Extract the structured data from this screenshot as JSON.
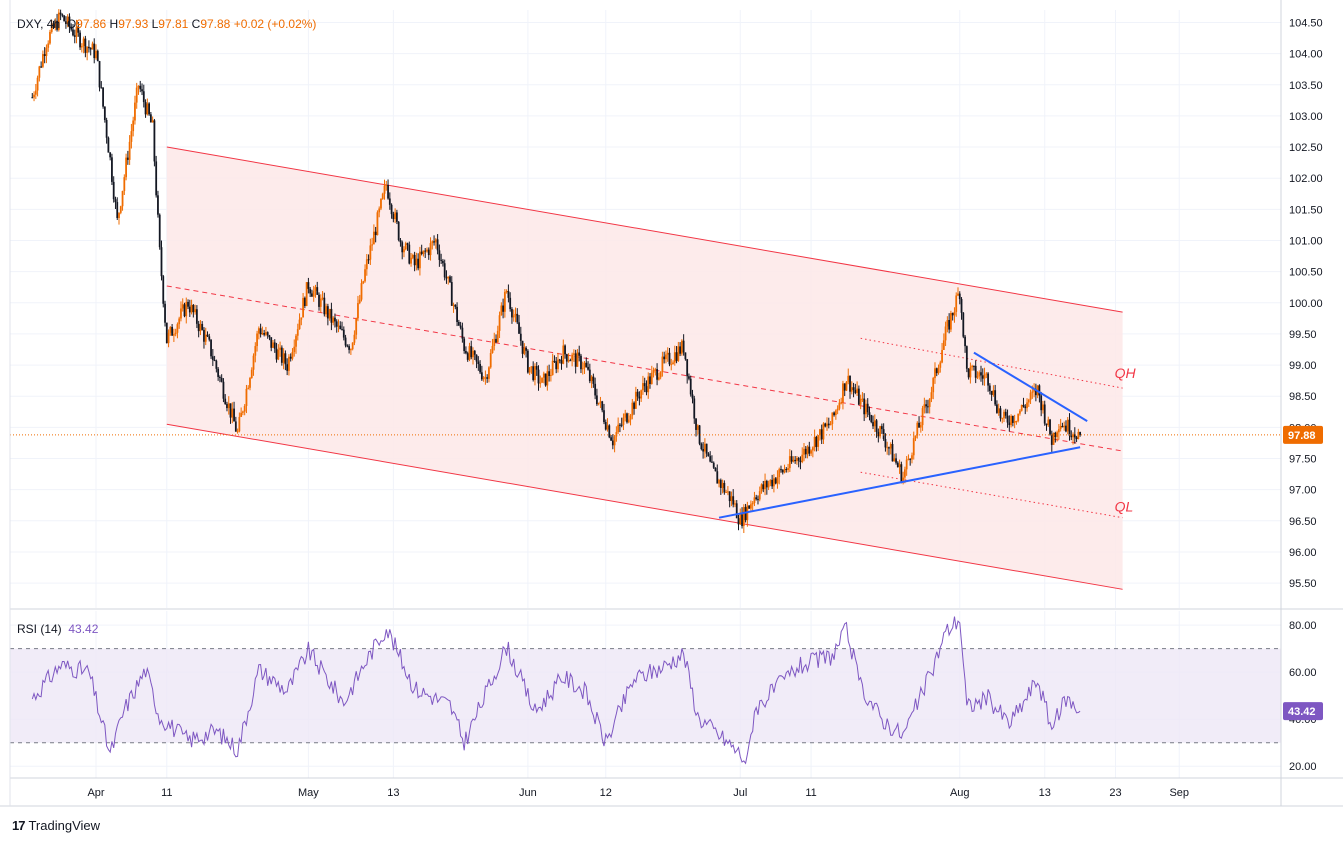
{
  "header": {
    "symbol": "DXY, 4h",
    "open_label": "O",
    "open": "97.86",
    "high_label": "H",
    "high": "97.93",
    "low_label": "L",
    "low": "97.81",
    "close_label": "C",
    "close": "97.88",
    "change": "+0.02 (+0.02%)"
  },
  "rsi_legend": {
    "label": "RSI (14)",
    "value": "43.42"
  },
  "brand": {
    "mark": "17",
    "name": "TradingView"
  },
  "colors": {
    "up": "#ef6c00",
    "down": "#131722",
    "channel_line": "#f23645",
    "channel_fill": "#fde7e7",
    "trendline": "#2962ff",
    "rsi": "#7e57c2",
    "rsi_band": "#ede7f6",
    "price_tag": "#ef6c00",
    "rsi_tag": "#7e57c2"
  },
  "chart_data": [
    {
      "type": "candlestick",
      "symbol": "DXY",
      "timeframe": "4h",
      "ylim": [
        95.1,
        104.7
      ],
      "y_ticks": [
        "95.50",
        "96.00",
        "96.50",
        "97.00",
        "97.50",
        "98.00",
        "98.50",
        "99.00",
        "99.50",
        "100.00",
        "100.50",
        "101.00",
        "101.50",
        "102.00",
        "102.50",
        "103.00",
        "103.50",
        "104.00",
        "104.50"
      ],
      "x_ticks": [
        "Apr",
        "11",
        "May",
        "13",
        "Jun",
        "12",
        "Jul",
        "11",
        "Aug",
        "13",
        "23",
        "Sep"
      ],
      "last_price": "97.88",
      "trend_path": [
        {
          "d": "Mar 23",
          "v": 103.3
        },
        {
          "d": "Mar 25",
          "v": 104.2
        },
        {
          "d": "Mar 27",
          "v": 104.6
        },
        {
          "d": "Mar 30",
          "v": 104.2
        },
        {
          "d": "Apr 1",
          "v": 104.0
        },
        {
          "d": "Apr 3",
          "v": 102.3
        },
        {
          "d": "Apr 4",
          "v": 101.3
        },
        {
          "d": "Apr 7",
          "v": 103.5
        },
        {
          "d": "Apr 9",
          "v": 102.8
        },
        {
          "d": "Apr 10",
          "v": 100.8
        },
        {
          "d": "Apr 11",
          "v": 99.4
        },
        {
          "d": "Apr 14",
          "v": 100.0
        },
        {
          "d": "Apr 17",
          "v": 99.3
        },
        {
          "d": "Apr 21",
          "v": 97.9
        },
        {
          "d": "Apr 24",
          "v": 99.6
        },
        {
          "d": "Apr 28",
          "v": 99.0
        },
        {
          "d": "May 1",
          "v": 100.3
        },
        {
          "d": "May 5",
          "v": 99.6
        },
        {
          "d": "May 7",
          "v": 99.3
        },
        {
          "d": "May 9",
          "v": 100.5
        },
        {
          "d": "May 12",
          "v": 101.9
        },
        {
          "d": "May 14",
          "v": 101.0
        },
        {
          "d": "May 16",
          "v": 100.6
        },
        {
          "d": "May 19",
          "v": 101.0
        },
        {
          "d": "May 21",
          "v": 100.2
        },
        {
          "d": "May 23",
          "v": 99.3
        },
        {
          "d": "May 26",
          "v": 98.8
        },
        {
          "d": "May 29",
          "v": 100.2
        },
        {
          "d": "Jun 1",
          "v": 99.0
        },
        {
          "d": "Jun 3",
          "v": 98.7
        },
        {
          "d": "Jun 6",
          "v": 99.2
        },
        {
          "d": "Jun 9",
          "v": 99.0
        },
        {
          "d": "Jun 11",
          "v": 98.4
        },
        {
          "d": "Jun 13",
          "v": 97.8
        },
        {
          "d": "Jun 17",
          "v": 98.6
        },
        {
          "d": "Jun 20",
          "v": 99.0
        },
        {
          "d": "Jun 23",
          "v": 99.3
        },
        {
          "d": "Jun 25",
          "v": 97.9
        },
        {
          "d": "Jun 27",
          "v": 97.3
        },
        {
          "d": "Jun 30",
          "v": 96.8
        },
        {
          "d": "Jul 1",
          "v": 96.5
        },
        {
          "d": "Jul 3",
          "v": 96.9
        },
        {
          "d": "Jul 7",
          "v": 97.3
        },
        {
          "d": "Jul 10",
          "v": 97.6
        },
        {
          "d": "Jul 14",
          "v": 98.1
        },
        {
          "d": "Jul 16",
          "v": 98.8
        },
        {
          "d": "Jul 18",
          "v": 98.4
        },
        {
          "d": "Jul 21",
          "v": 97.9
        },
        {
          "d": "Jul 24",
          "v": 97.2
        },
        {
          "d": "Jul 25",
          "v": 97.6
        },
        {
          "d": "Jul 28",
          "v": 98.6
        },
        {
          "d": "Jul 30",
          "v": 99.5
        },
        {
          "d": "Aug 1",
          "v": 100.2
        },
        {
          "d": "Aug 2",
          "v": 98.9
        },
        {
          "d": "Aug 5",
          "v": 98.8
        },
        {
          "d": "Aug 7",
          "v": 98.1
        },
        {
          "d": "Aug 9",
          "v": 98.2
        },
        {
          "d": "Aug 12",
          "v": 98.6
        },
        {
          "d": "Aug 14",
          "v": 97.8
        },
        {
          "d": "Aug 15",
          "v": 98.1
        },
        {
          "d": "Aug 18",
          "v": 97.88
        }
      ],
      "channel": {
        "upper": [
          {
            "d": "Apr 11",
            "v": 102.5
          },
          {
            "d": "Aug 24",
            "v": 99.85
          }
        ],
        "lower": [
          {
            "d": "Apr 11",
            "v": 98.05
          },
          {
            "d": "Aug 24",
            "v": 95.4
          }
        ],
        "mid": [
          {
            "d": "Apr 11",
            "v": 100.27
          },
          {
            "d": "Aug 24",
            "v": 97.62
          }
        ]
      },
      "quartiles": {
        "QH": [
          {
            "d": "Jul 18",
            "v": 99.43
          },
          {
            "d": "Aug 24",
            "v": 98.63
          }
        ],
        "QL": [
          {
            "d": "Jul 18",
            "v": 97.28
          },
          {
            "d": "Aug 24",
            "v": 96.55
          }
        ]
      },
      "trendlines": [
        {
          "from": {
            "d": "Jun 28",
            "v": 96.55
          },
          "to": {
            "d": "Aug 18",
            "v": 97.68
          }
        },
        {
          "from": {
            "d": "Aug 3",
            "v": 99.2
          },
          "to": {
            "d": "Aug 19",
            "v": 98.1
          }
        }
      ],
      "annotations": [
        "QH",
        "QL"
      ]
    },
    {
      "type": "line",
      "name": "RSI (14)",
      "ylim": [
        15,
        86
      ],
      "y_ticks": [
        "20.00",
        "40.00",
        "60.00",
        "80.00"
      ],
      "bands": [
        30,
        70
      ],
      "last_value": "43.42",
      "points": [
        {
          "d": "Mar 23",
          "v": 49
        },
        {
          "d": "Mar 27",
          "v": 63
        },
        {
          "d": "Mar 31",
          "v": 60
        },
        {
          "d": "Apr 3",
          "v": 25
        },
        {
          "d": "Apr 5",
          "v": 44
        },
        {
          "d": "Apr 8",
          "v": 61
        },
        {
          "d": "Apr 10",
          "v": 41
        },
        {
          "d": "Apr 14",
          "v": 31
        },
        {
          "d": "Apr 18",
          "v": 35
        },
        {
          "d": "Apr 21",
          "v": 27
        },
        {
          "d": "Apr 24",
          "v": 61
        },
        {
          "d": "Apr 28",
          "v": 52
        },
        {
          "d": "May 1",
          "v": 69
        },
        {
          "d": "May 6",
          "v": 47
        },
        {
          "d": "May 9",
          "v": 64
        },
        {
          "d": "May 12",
          "v": 79
        },
        {
          "d": "May 16",
          "v": 53
        },
        {
          "d": "May 21",
          "v": 46
        },
        {
          "d": "May 23",
          "v": 30
        },
        {
          "d": "May 29",
          "v": 71
        },
        {
          "d": "Jun 2",
          "v": 43
        },
        {
          "d": "Jun 6",
          "v": 58
        },
        {
          "d": "Jun 9",
          "v": 52
        },
        {
          "d": "Jun 12",
          "v": 30
        },
        {
          "d": "Jun 16",
          "v": 57
        },
        {
          "d": "Jun 20",
          "v": 62
        },
        {
          "d": "Jun 23",
          "v": 68
        },
        {
          "d": "Jun 25",
          "v": 41
        },
        {
          "d": "Jun 30",
          "v": 28
        },
        {
          "d": "Jul 2",
          "v": 22
        },
        {
          "d": "Jul 3",
          "v": 44
        },
        {
          "d": "Jul 9",
          "v": 62
        },
        {
          "d": "Jul 14",
          "v": 67
        },
        {
          "d": "Jul 16",
          "v": 78
        },
        {
          "d": "Jul 18",
          "v": 54
        },
        {
          "d": "Jul 21",
          "v": 40
        },
        {
          "d": "Jul 24",
          "v": 33
        },
        {
          "d": "Jul 28",
          "v": 60
        },
        {
          "d": "Jul 30",
          "v": 77
        },
        {
          "d": "Aug 1",
          "v": 83
        },
        {
          "d": "Aug 2",
          "v": 45
        },
        {
          "d": "Aug 5",
          "v": 49
        },
        {
          "d": "Aug 8",
          "v": 38
        },
        {
          "d": "Aug 10",
          "v": 47
        },
        {
          "d": "Aug 12",
          "v": 57
        },
        {
          "d": "Aug 14",
          "v": 36
        },
        {
          "d": "Aug 16",
          "v": 49
        },
        {
          "d": "Aug 18",
          "v": 43.42
        }
      ]
    }
  ]
}
